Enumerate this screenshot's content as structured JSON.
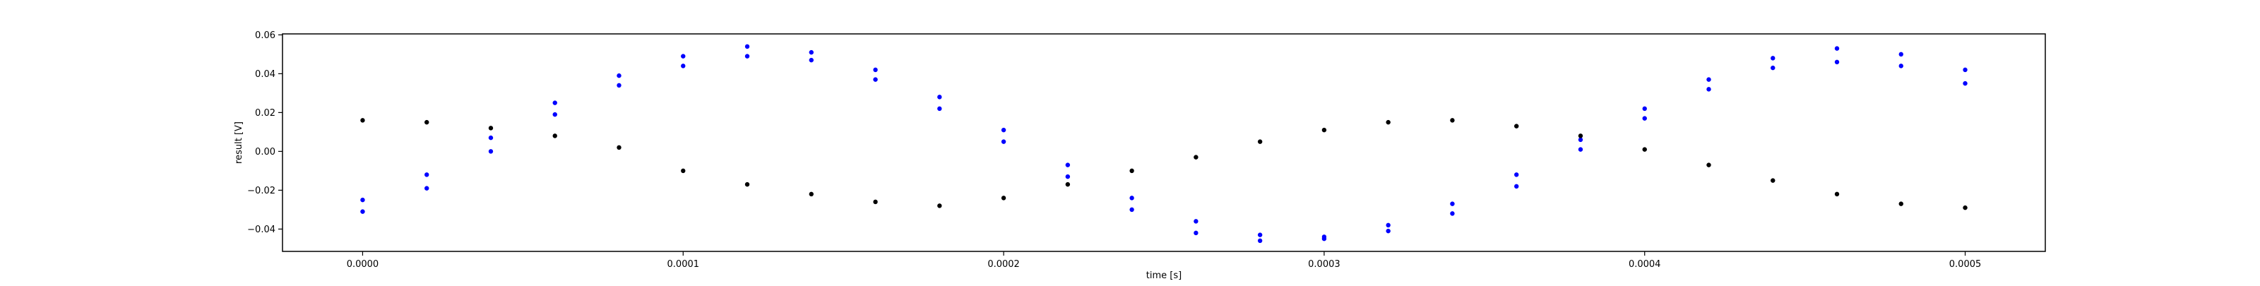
{
  "chart_data": {
    "type": "scatter",
    "title": "",
    "xlabel": "time [s]",
    "ylabel": "result [V]",
    "xlim": [
      -2.5e-05,
      0.000525
    ],
    "ylim": [
      -0.0515,
      0.0605
    ],
    "xticks": [
      0.0,
      0.0001,
      0.0002,
      0.0003,
      0.0004,
      0.0005
    ],
    "xtick_labels": [
      "0.0000",
      "0.0001",
      "0.0002",
      "0.0003",
      "0.0004",
      "0.0005"
    ],
    "yticks": [
      -0.04,
      -0.02,
      0.0,
      0.02,
      0.04,
      0.06
    ],
    "ytick_labels": [
      "−0.04",
      "−0.02",
      "0.00",
      "0.02",
      "0.04",
      "0.06"
    ],
    "grid": false,
    "legend": "none",
    "colors": {
      "series_a": "#0000ff",
      "series_b": "#0000ff",
      "series_c": "#000000"
    },
    "series": [
      {
        "x": [
          0.0,
          2e-05,
          4e-05,
          6e-05,
          8e-05,
          0.0001,
          0.00012,
          0.00014,
          0.00016,
          0.00018,
          0.0002,
          0.00022,
          0.00024,
          0.00026,
          0.00028,
          0.0003,
          0.00032,
          0.00034,
          0.00036,
          0.00038,
          0.0004,
          0.00042,
          0.00044,
          0.00046,
          0.00048,
          0.0005
        ],
        "y": [
          -0.025,
          -0.012,
          0.007,
          0.025,
          0.039,
          0.049,
          0.054,
          0.051,
          0.042,
          0.028,
          0.011,
          -0.007,
          -0.024,
          -0.036,
          -0.043,
          -0.044,
          -0.038,
          -0.027,
          -0.012,
          0.006,
          0.022,
          0.037,
          0.048,
          0.053,
          0.05,
          0.042
        ]
      },
      {
        "x": [
          0.0,
          2e-05,
          4e-05,
          6e-05,
          8e-05,
          0.0001,
          0.00012,
          0.00014,
          0.00016,
          0.00018,
          0.0002,
          0.00022,
          0.00024,
          0.00026,
          0.00028,
          0.0003,
          0.00032,
          0.00034,
          0.00036,
          0.00038,
          0.0004,
          0.00042,
          0.00044,
          0.00046,
          0.00048,
          0.0005
        ],
        "y": [
          -0.031,
          -0.019,
          0.0,
          0.019,
          0.034,
          0.044,
          0.049,
          0.047,
          0.037,
          0.022,
          0.005,
          -0.013,
          -0.03,
          -0.042,
          -0.046,
          -0.045,
          -0.041,
          -0.032,
          -0.018,
          0.001,
          0.017,
          0.032,
          0.043,
          0.046,
          0.044,
          0.035
        ]
      },
      {
        "x": [
          0.0,
          2e-05,
          4e-05,
          6e-05,
          8e-05,
          0.0001,
          0.00012,
          0.00014,
          0.00016,
          0.00018,
          0.0002,
          0.00022,
          0.00024,
          0.00026,
          0.00028,
          0.0003,
          0.00032,
          0.00034,
          0.00036,
          0.00038,
          0.0004,
          0.00042,
          0.00044,
          0.00046,
          0.00048,
          0.0005
        ],
        "y": [
          0.016,
          0.015,
          0.012,
          0.008,
          0.002,
          -0.01,
          -0.017,
          -0.022,
          -0.026,
          -0.028,
          -0.024,
          -0.017,
          -0.01,
          -0.003,
          0.005,
          0.011,
          0.015,
          0.016,
          0.013,
          0.008,
          0.001,
          -0.007,
          -0.015,
          -0.022,
          -0.027,
          -0.029
        ]
      }
    ]
  }
}
